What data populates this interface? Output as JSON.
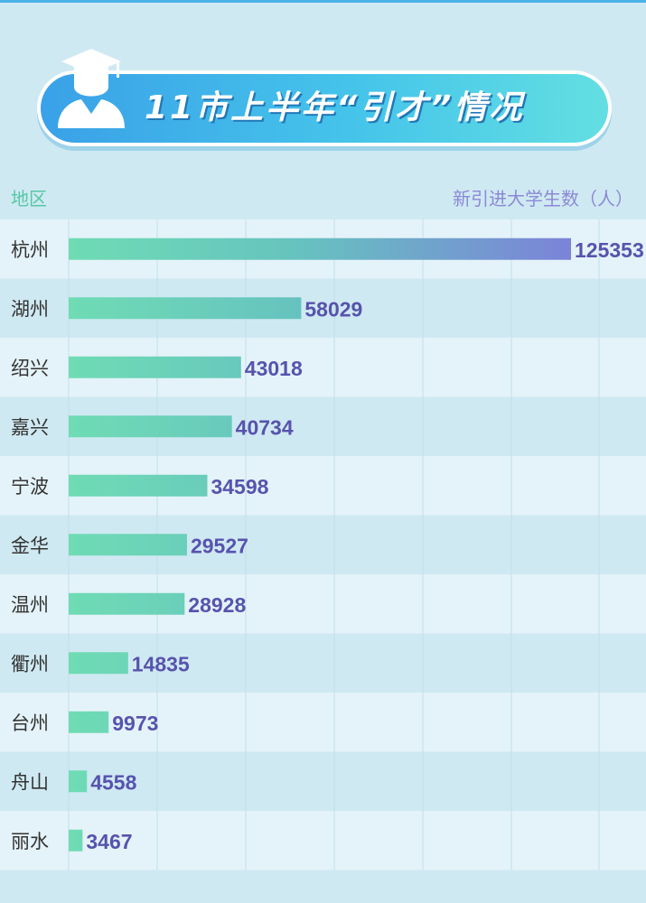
{
  "header": {
    "title": "11市上半年“引才”情况",
    "left_label": "地区",
    "right_label": "新引进大学生数（人）"
  },
  "colors": {
    "background": "#cfe9f2",
    "row_light": "#e4f3f9",
    "row_dark": "#cfe9f2",
    "bar_start": "#6fdcb4",
    "bar_end": "#7b83d9",
    "value_text": "#5753ad",
    "category_text": "#333333",
    "header_left": "#56c7a4",
    "header_right": "#8b89d6"
  },
  "icons": [
    "graduate-icon"
  ],
  "chart_data": {
    "type": "bar",
    "orientation": "horizontal",
    "title": "11市上半年“引才”情况",
    "category_label": "地区",
    "value_label": "新引进大学生数（人）",
    "categories": [
      "杭州",
      "湖州",
      "绍兴",
      "嘉兴",
      "宁波",
      "金华",
      "温州",
      "衢州",
      "台州",
      "舟山",
      "丽水"
    ],
    "values": [
      125353,
      58029,
      43018,
      40734,
      34598,
      29527,
      28928,
      14835,
      9973,
      4558,
      3467
    ],
    "xlim": [
      0,
      125353
    ],
    "grid": true,
    "legend": "none"
  }
}
